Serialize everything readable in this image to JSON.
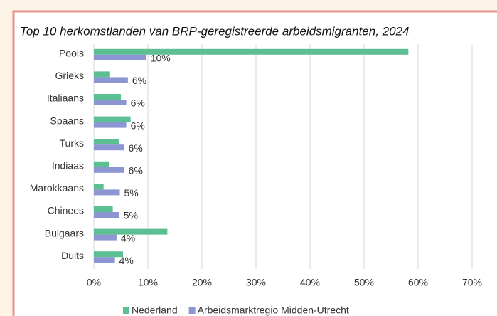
{
  "chart_data": {
    "type": "bar",
    "orientation": "horizontal",
    "title": "Top 10 herkomstlanden van BRP-geregistreerde arbeidsmigranten, 2024",
    "categories": [
      "Pools",
      "Grieks",
      "Italiaans",
      "Spaans",
      "Turks",
      "Indiaas",
      "Marokkaans",
      "Chinees",
      "Bulgaars",
      "Duits"
    ],
    "series": [
      {
        "name": "Nederland",
        "color": "#5cbf92",
        "values": [
          58.2,
          3.0,
          5.0,
          6.8,
          4.6,
          2.8,
          1.8,
          3.5,
          13.6,
          5.4
        ]
      },
      {
        "name": "Arbeidsmarktregio Midden-Utrecht",
        "color": "#8b96d2",
        "values": [
          9.7,
          6.3,
          6.0,
          6.0,
          5.6,
          5.6,
          4.8,
          4.7,
          4.2,
          3.9
        ],
        "value_labels": [
          "10%",
          "6%",
          "6%",
          "6%",
          "6%",
          "6%",
          "5%",
          "5%",
          "4%",
          "4%"
        ]
      }
    ],
    "xlim": [
      0,
      70
    ],
    "xticks": [
      {
        "value": 0,
        "label": "0%"
      },
      {
        "value": 10,
        "label": "10%"
      },
      {
        "value": 20,
        "label": "20%"
      },
      {
        "value": 30,
        "label": "30%"
      },
      {
        "value": 40,
        "label": "40%"
      },
      {
        "value": 50,
        "label": "50%"
      },
      {
        "value": 60,
        "label": "60%"
      },
      {
        "value": 70,
        "label": "70%"
      }
    ],
    "grid": true,
    "legend": "bottom"
  }
}
